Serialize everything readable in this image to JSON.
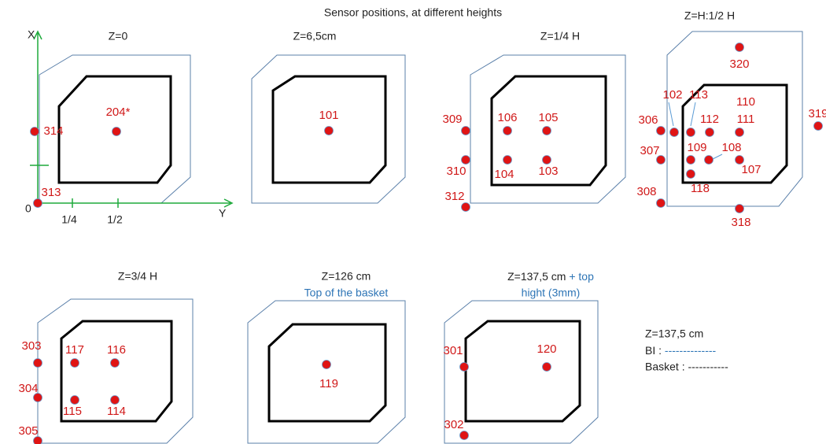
{
  "title": "Sensor positions, at different heights",
  "panels": [
    {
      "title": "Z=0",
      "sensors": [
        "204*",
        "314",
        "313"
      ],
      "axis_labels": {
        "x": "X",
        "origin": "0",
        "quarter": "1/4",
        "half": "1/2",
        "y": "Y"
      }
    },
    {
      "title": "Z=6,5cm",
      "sensors": [
        "101"
      ]
    },
    {
      "title": "Z=1/4 H",
      "sensors": [
        "309",
        "106",
        "105",
        "310",
        "104",
        "103",
        "312"
      ]
    },
    {
      "title": "Z=H:1/2 H",
      "sensors": [
        "320",
        "102",
        "113",
        "110",
        "306",
        "112",
        "111",
        "319",
        "307",
        "109",
        "108",
        "107",
        "118",
        "308",
        "318"
      ]
    },
    {
      "title": "Z=3/4 H",
      "sensors": [
        "303",
        "117",
        "116",
        "304",
        "115",
        "114",
        "305"
      ]
    },
    {
      "title": "Z=126 cm",
      "subtitle": "Top of the basket",
      "sensors": [
        "119"
      ]
    },
    {
      "title": "Z=137,5 cm",
      "title_extra": "+ top",
      "subtitle": "hight (3mm)",
      "sensors": [
        "301",
        "120",
        "302"
      ]
    }
  ],
  "legend": {
    "title": "Z=137,5 cm",
    "bi_label": "BI :",
    "bi_line": "--------------",
    "basket": "Basket : -----------"
  }
}
